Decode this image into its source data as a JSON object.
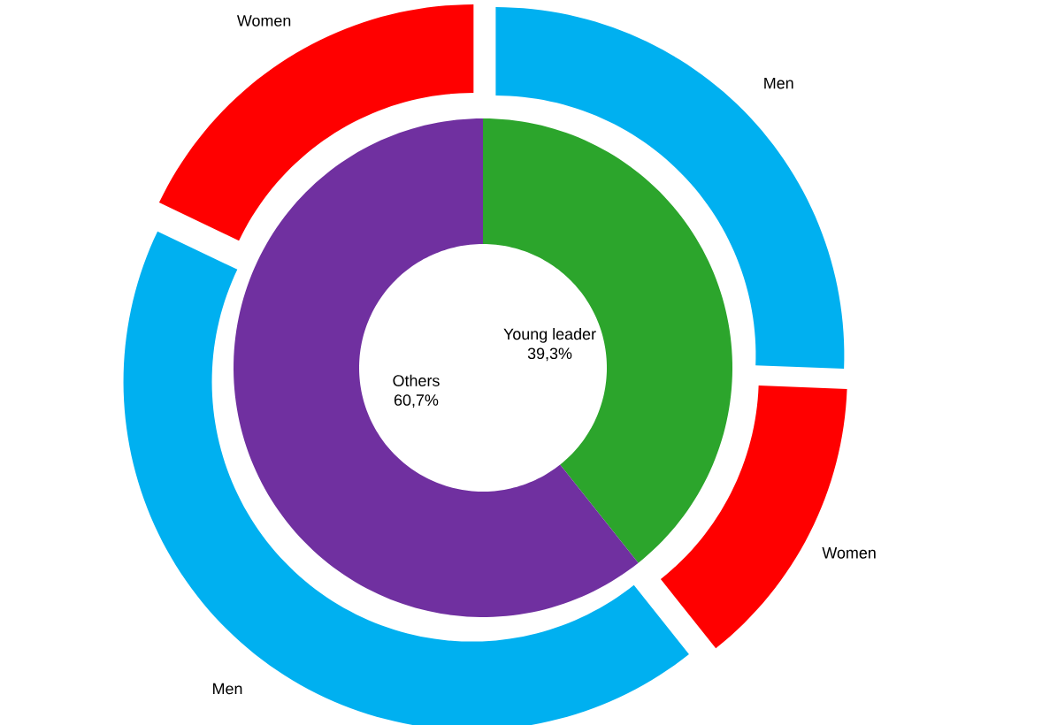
{
  "chart_data": [
    {
      "type": "donut",
      "categories": [
        "Young leader",
        "Others"
      ],
      "values": [
        39.3,
        60.7
      ],
      "value_labels": [
        "39,3%",
        "60,7%"
      ],
      "colors": [
        "#2ca52c",
        "#7030a0"
      ]
    },
    {
      "type": "donut",
      "categories": [
        "Men",
        "Women",
        "Men",
        "Women"
      ],
      "values": [
        25.6,
        13.7,
        42.8,
        17.9
      ],
      "colors": [
        "#00b0f0",
        "#ff0000",
        "#00b0f0",
        "#ff0000"
      ]
    }
  ]
}
